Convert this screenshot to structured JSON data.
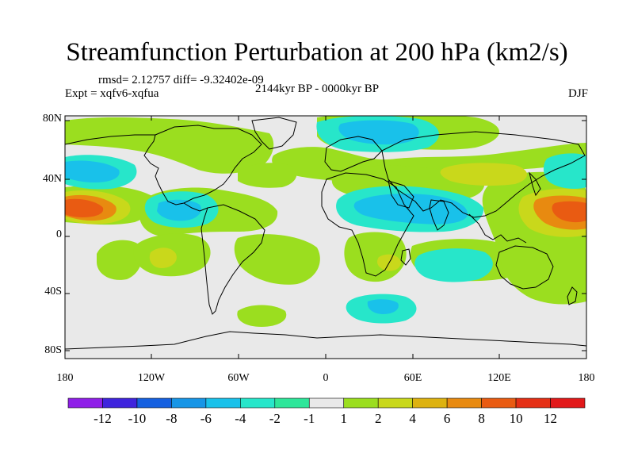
{
  "title": "Streamfunction Perturbation at 200 hPa (km2/s)",
  "rmsd_line": "rmsd= 2.12757 diff= -9.32402e-09",
  "expt_line": "Expt = xqfv6-xqfua",
  "period": "2144kyr BP - 0000kyr BP",
  "season": "DJF",
  "lat_ticks": [
    "80N",
    "40N",
    "0",
    "40S",
    "80S"
  ],
  "lon_ticks": [
    "180",
    "120W",
    "60W",
    "0",
    "60E",
    "120E",
    "180"
  ],
  "colorbar": {
    "labels": [
      "-12",
      "-10",
      "-8",
      "-6",
      "-4",
      "-2",
      "-1",
      "1",
      "2",
      "4",
      "6",
      "8",
      "10",
      "12"
    ],
    "colors": [
      "#8f1fe8",
      "#3f24dd",
      "#1560e0",
      "#1795e6",
      "#19c1ea",
      "#27e6ca",
      "#2ee69a",
      "#e9e9e9",
      "#9bde1f",
      "#c9d81b",
      "#ddb210",
      "#e88a10",
      "#e95b12",
      "#e52f15",
      "#e2191a"
    ]
  },
  "map_colors": {
    "neutral": "#e9e9e9",
    "coast": "#000000"
  }
}
